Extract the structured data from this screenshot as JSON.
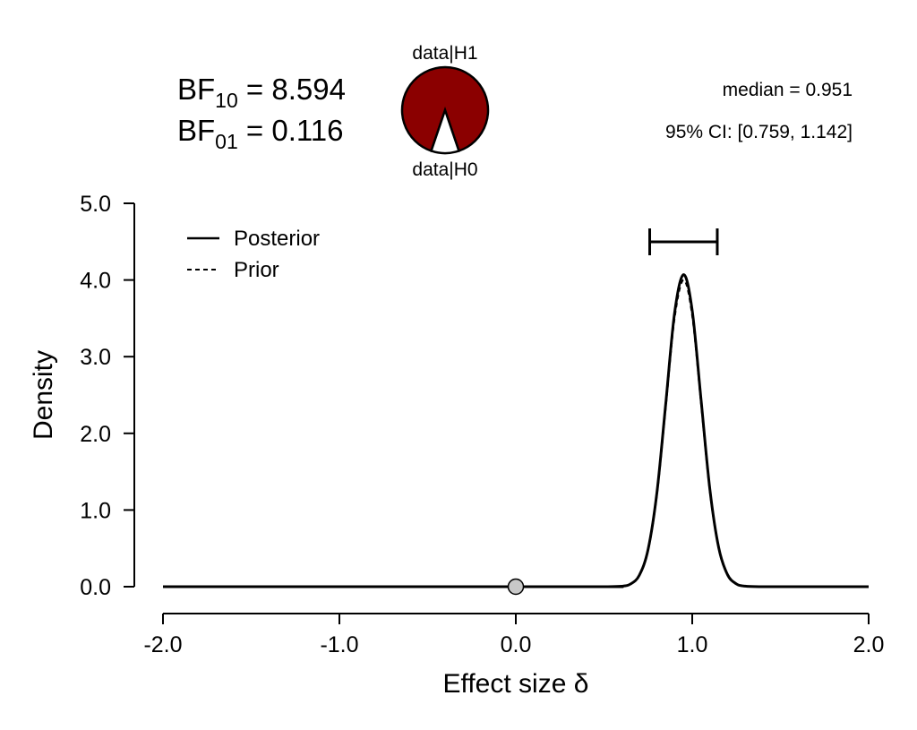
{
  "chart_data": {
    "type": "line",
    "xlabel": "Effect size δ",
    "ylabel": "Density",
    "xlim": [
      -2.0,
      2.0
    ],
    "ylim": [
      0.0,
      5.0
    ],
    "xticks": [
      "-2.0",
      "-1.0",
      "0.0",
      "1.0",
      "2.0"
    ],
    "yticks": [
      "0.0",
      "1.0",
      "2.0",
      "3.0",
      "4.0",
      "5.0"
    ],
    "legend": {
      "placement": "top-left",
      "entries": [
        "Posterior",
        "Prior"
      ]
    },
    "series": [
      {
        "name": "Posterior",
        "style": "solid",
        "color": "#000000",
        "x": [
          -2.0,
          0.4,
          0.5,
          0.6,
          0.65,
          0.7,
          0.75,
          0.8,
          0.85,
          0.9,
          0.951,
          1.0,
          1.05,
          1.1,
          1.15,
          1.2,
          1.25,
          1.3,
          1.4,
          1.5,
          2.0
        ],
        "y": [
          0.0,
          0.0,
          0.0,
          0.006,
          0.035,
          0.149,
          0.488,
          1.23,
          2.39,
          3.57,
          4.07,
          3.6,
          2.44,
          1.27,
          0.51,
          0.157,
          0.037,
          0.007,
          0.0,
          0.0,
          0.0
        ]
      },
      {
        "name": "Prior",
        "style": "dashed",
        "color": "#000000",
        "x": [
          -2.0,
          0.4,
          0.5,
          0.6,
          0.65,
          0.7,
          0.75,
          0.8,
          0.85,
          0.9,
          0.951,
          1.0,
          1.05,
          1.1,
          1.15,
          1.2,
          1.25,
          1.3,
          1.4,
          1.5,
          2.0
        ],
        "y": [
          0.0,
          0.0,
          0.0,
          0.006,
          0.034,
          0.146,
          0.478,
          1.2,
          2.34,
          3.5,
          4.0,
          3.53,
          2.39,
          1.24,
          0.5,
          0.154,
          0.036,
          0.007,
          0.0,
          0.0,
          0.0
        ]
      }
    ],
    "point_at_null": {
      "x": 0.0,
      "y": 0.0,
      "color": "#c8c8c8"
    },
    "credible_interval": {
      "lower": 0.759,
      "upper": 1.142,
      "level": "95%"
    },
    "bayes_factors": {
      "bf10_label": "BF",
      "bf10_sub": "10",
      "bf10_value": "8.594",
      "bf01_label": "BF",
      "bf01_sub": "01",
      "bf01_value": "0.116"
    },
    "pie": {
      "h1_label": "data|H1",
      "h0_label": "data|H0",
      "h1_share": 0.8958,
      "h0_share": 0.1042,
      "h1_color": "#8b0000",
      "h0_color": "#ffffff"
    },
    "summary": {
      "median": "median = 0.951",
      "ci": "95% CI: [0.759, 1.142]"
    }
  }
}
